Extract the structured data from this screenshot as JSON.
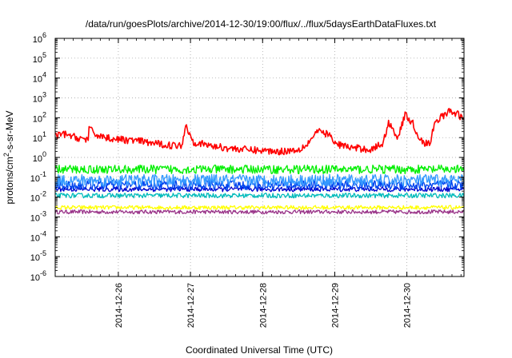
{
  "chart_data": {
    "type": "line",
    "title": "/data/run/goesPlots/archive/2014-12-30/19:00/flux/../flux/5daysEarthDataFluxes.txt",
    "xlabel": "Coordinated Universal Time (UTC)",
    "ylabel": "protons/cm2-s-sr-MeV",
    "ylabel_parts": {
      "before": "protons/cm",
      "sup": "2",
      "after": "-s-sr-MeV"
    },
    "yscale": "log",
    "ylim_exponent": [
      -6,
      6
    ],
    "y_ticks": [
      {
        "base": "10",
        "exp": "-6"
      },
      {
        "base": "10",
        "exp": "-5"
      },
      {
        "base": "10",
        "exp": "-4"
      },
      {
        "base": "10",
        "exp": "-3"
      },
      {
        "base": "10",
        "exp": "-2"
      },
      {
        "base": "10",
        "exp": "-1"
      },
      {
        "base": "10",
        "exp": "0"
      },
      {
        "base": "10",
        "exp": "1"
      },
      {
        "base": "10",
        "exp": "2"
      },
      {
        "base": "10",
        "exp": "3"
      },
      {
        "base": "10",
        "exp": "4"
      },
      {
        "base": "10",
        "exp": "5"
      },
      {
        "base": "10",
        "exp": "6"
      }
    ],
    "xlim": [
      "2014-12-25 03:00",
      "2014-12-30 19:00"
    ],
    "x_ticks": [
      "2014-12-26",
      "2014-12-27",
      "2014-12-28",
      "2014-12-29",
      "2014-12-30"
    ],
    "grid": true,
    "series": [
      {
        "color": "#ff0000",
        "keypoints": [
          [
            "2014-12-25 03:00",
            12
          ],
          [
            "2014-12-25 06:00",
            15
          ],
          [
            "2014-12-25 10:00",
            10
          ],
          [
            "2014-12-25 14:00",
            8
          ],
          [
            "2014-12-25 12:30",
            5
          ],
          [
            "2014-12-25 13:00",
            50
          ],
          [
            "2014-12-25 16:00",
            15
          ],
          [
            "2014-12-25 20:00",
            10
          ],
          [
            "2014-12-26 00:00",
            8
          ],
          [
            "2014-12-26 06:00",
            7
          ],
          [
            "2014-12-26 12:00",
            5
          ],
          [
            "2014-12-26 18:00",
            4
          ],
          [
            "2014-12-26 21:00",
            4
          ],
          [
            "2014-12-26 22:30",
            40
          ],
          [
            "2014-12-27 01:00",
            6
          ],
          [
            "2014-12-27 06:00",
            4
          ],
          [
            "2014-12-27 12:00",
            3
          ],
          [
            "2014-12-27 18:00",
            2.5
          ],
          [
            "2014-12-28 00:00",
            2.2
          ],
          [
            "2014-12-28 06:00",
            2
          ],
          [
            "2014-12-28 12:00",
            2.5
          ],
          [
            "2014-12-28 15:00",
            5
          ],
          [
            "2014-12-28 18:00",
            20
          ],
          [
            "2014-12-28 22:00",
            15
          ],
          [
            "2014-12-29 00:00",
            5
          ],
          [
            "2014-12-29 06:00",
            3
          ],
          [
            "2014-12-29 12:00",
            2.5
          ],
          [
            "2014-12-29 16:00",
            5
          ],
          [
            "2014-12-29 18:00",
            60
          ],
          [
            "2014-12-29 21:00",
            10
          ],
          [
            "2014-12-29 23:30",
            150
          ],
          [
            "2014-12-30 02:00",
            50
          ],
          [
            "2014-12-30 04:00",
            10
          ],
          [
            "2014-12-30 06:00",
            5
          ],
          [
            "2014-12-30 08:00",
            5
          ],
          [
            "2014-12-30 09:00",
            50
          ],
          [
            "2014-12-30 11:00",
            100
          ],
          [
            "2014-12-30 14:00",
            200
          ],
          [
            "2014-12-30 17:00",
            150
          ],
          [
            "2014-12-30 19:00",
            80
          ]
        ],
        "noise_decades": 0.18
      },
      {
        "color": "#00ee00",
        "level": 0.25,
        "noise_decades": 0.22
      },
      {
        "color": "#3399ff",
        "level": 0.07,
        "noise_decades": 0.3
      },
      {
        "color": "#0044ee",
        "level": 0.04,
        "noise_decades": 0.25
      },
      {
        "color": "#0000cc",
        "level": 0.025,
        "noise_decades": 0.12
      },
      {
        "color": "#00bbbb",
        "level": 0.012,
        "noise_decades": 0.12
      },
      {
        "color": "#ffff00",
        "level": 0.003,
        "noise_decades": 0.1
      },
      {
        "color": "#993388",
        "level": 0.0018,
        "noise_decades": 0.1
      }
    ]
  }
}
